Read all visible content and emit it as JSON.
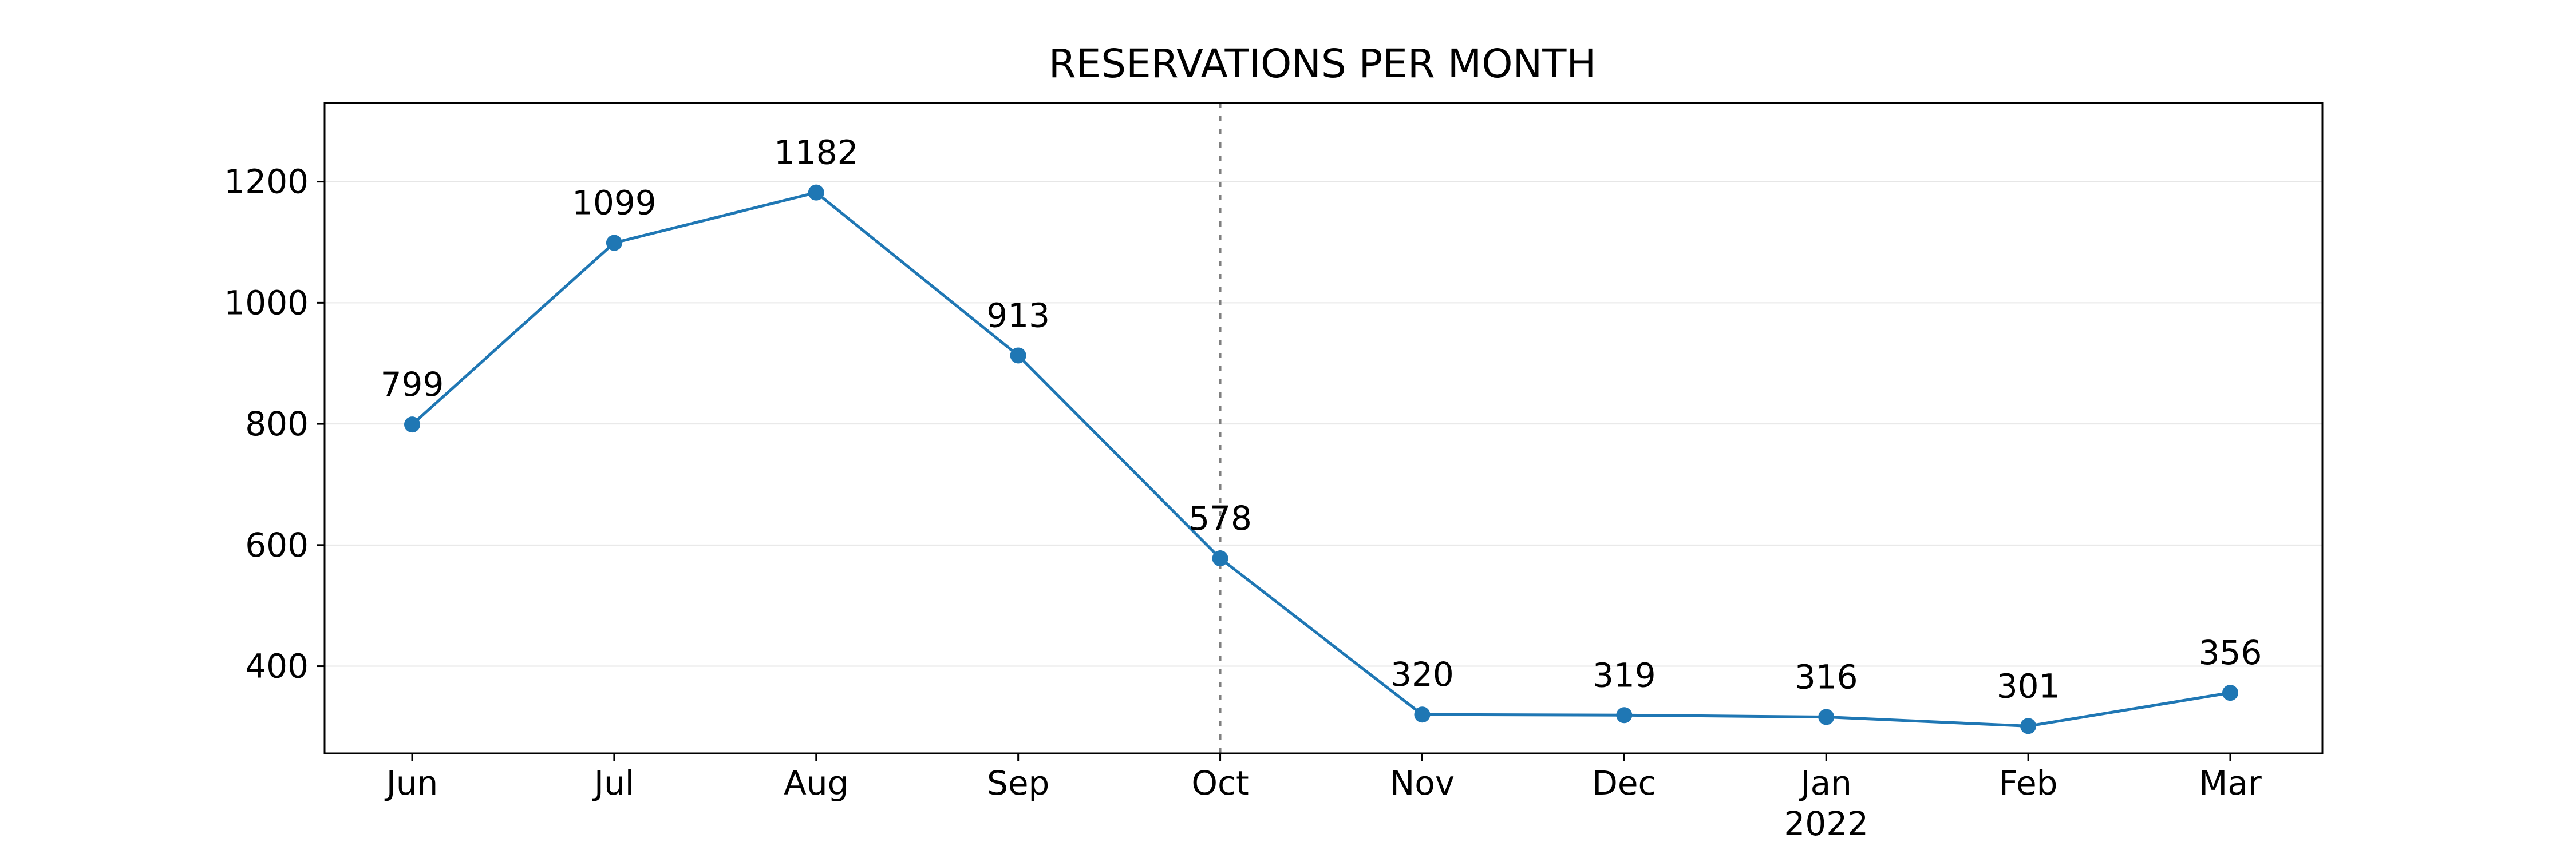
{
  "chart_data": {
    "type": "line",
    "title": "RESERVATIONS PER MONTH",
    "xlabel": "",
    "ylabel": "",
    "categories": [
      "Jun",
      "Jul",
      "Aug",
      "Sep",
      "Oct",
      "Nov",
      "Dec",
      "Jan",
      "Feb",
      "Mar"
    ],
    "category_sublabels": [
      "",
      "",
      "",
      "",
      "",
      "",
      "",
      "2022",
      "",
      ""
    ],
    "series": [
      {
        "values": [
          799,
          1099,
          1182,
          913,
          578,
          320,
          319,
          316,
          301,
          356
        ],
        "color": "#1f77b4"
      }
    ],
    "data_labels": [
      "799",
      "1099",
      "1182",
      "913",
      "578",
      "320",
      "319",
      "316",
      "301",
      "356"
    ],
    "yticks": [
      400,
      600,
      800,
      1000,
      1200
    ],
    "ylim": [
      256,
      1330
    ],
    "grid": {
      "y": true,
      "x": false,
      "color": "#e6e6e6"
    },
    "reference_line": {
      "category": "Oct",
      "style": "dotted",
      "color": "#7f7f7f"
    },
    "legend": "none"
  }
}
